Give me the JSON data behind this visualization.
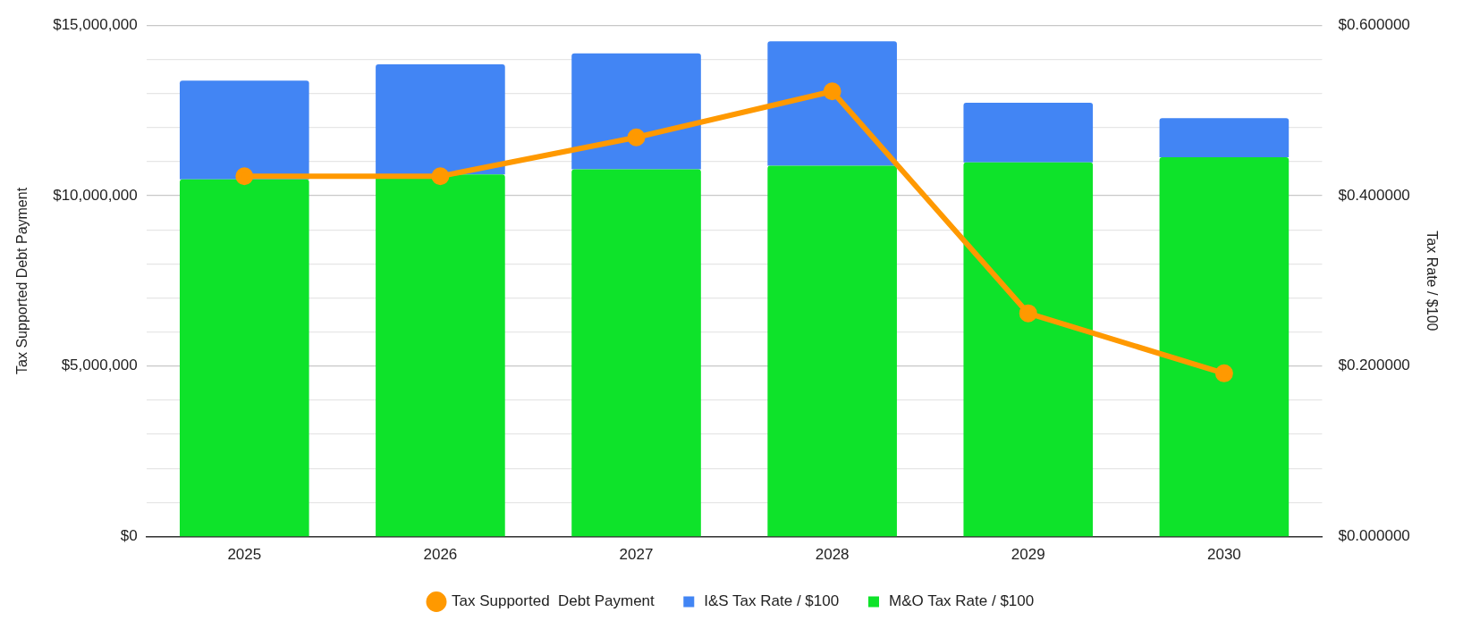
{
  "chart_data": {
    "type": "bar",
    "categories": [
      "2025",
      "2026",
      "2027",
      "2028",
      "2029",
      "2030"
    ],
    "ylabel": "Tax Supported Debt Payment",
    "y2label": "Tax Rate / $100",
    "stacked": true,
    "grid": "y",
    "legend": "bottom",
    "ylim": [
      0,
      15000000
    ],
    "yticks": [
      {
        "value": 0,
        "label": "$0"
      },
      {
        "value": 1000000,
        "label": null
      },
      {
        "value": 2000000,
        "label": null
      },
      {
        "value": 3000000,
        "label": null
      },
      {
        "value": 4000000,
        "label": null
      },
      {
        "value": 5000000,
        "label": "$5,000,000"
      },
      {
        "value": 6000000,
        "label": null
      },
      {
        "value": 7000000,
        "label": null
      },
      {
        "value": 8000000,
        "label": null
      },
      {
        "value": 9000000,
        "label": null
      },
      {
        "value": 10000000,
        "label": "$10,000,000"
      },
      {
        "value": 11000000,
        "label": null
      },
      {
        "value": 12000000,
        "label": null
      },
      {
        "value": 13000000,
        "label": null
      },
      {
        "value": 14000000,
        "label": null
      },
      {
        "value": 15000000,
        "label": "$15,000,000"
      }
    ],
    "y2lim": [
      0,
      0.6
    ],
    "y2ticks": [
      {
        "value": 0,
        "label": "$0.000000"
      },
      {
        "value": 0.2,
        "label": "$0.200000"
      },
      {
        "value": 0.4,
        "label": "$0.400000"
      },
      {
        "value": 0.6,
        "label": "$0.600000"
      }
    ],
    "series": [
      {
        "name": "Tax Supported  Debt Payment",
        "type": "line",
        "color": "#ff9900",
        "marker": "circle",
        "line_style": "solid",
        "values": [
          10570000,
          10570000,
          11710000,
          13060000,
          6550000,
          4790000
        ]
      },
      {
        "name": "M&O Tax Rate / $100",
        "axis": "y2",
        "color": "#0ee32a",
        "values": [
          0.419,
          0.425,
          0.431,
          0.435,
          0.439,
          0.445
        ]
      },
      {
        "name": "I&S Tax Rate / $100",
        "axis": "y2",
        "color": "#4285f4",
        "values": [
          0.116,
          0.129,
          0.136,
          0.146,
          0.07,
          0.046
        ]
      }
    ]
  }
}
